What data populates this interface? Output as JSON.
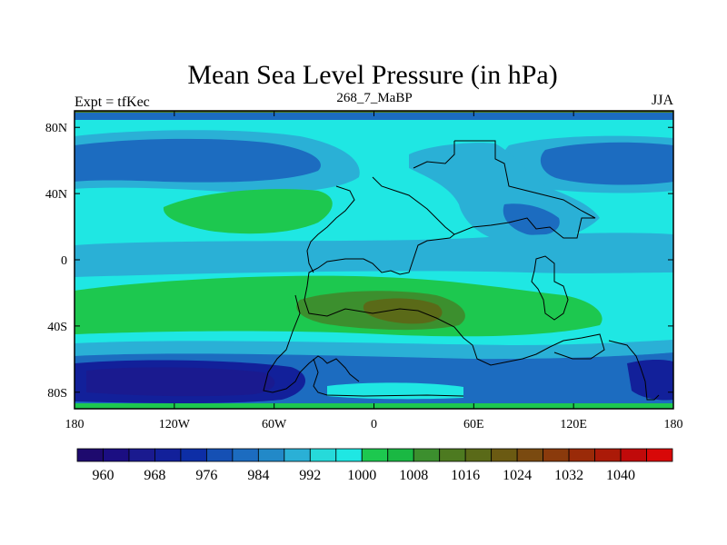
{
  "title": "Mean Sea Level Pressure (in hPa)",
  "left_label": "Expt = tfKec",
  "center_label": "268_7_MaBP",
  "right_label": "JJA",
  "lat_ticks": [
    {
      "label": "80N",
      "lat": 80
    },
    {
      "label": "40N",
      "lat": 40
    },
    {
      "label": "0",
      "lat": 0
    },
    {
      "label": "40S",
      "lat": -40
    },
    {
      "label": "80S",
      "lat": -80
    }
  ],
  "lon_ticks": [
    {
      "label": "180",
      "lon": -180
    },
    {
      "label": "120W",
      "lon": -120
    },
    {
      "label": "60W",
      "lon": -60
    },
    {
      "label": "0",
      "lon": 0
    },
    {
      "label": "60E",
      "lon": 60
    },
    {
      "label": "120E",
      "lon": 120
    },
    {
      "label": "180",
      "lon": 180
    }
  ],
  "colorbar": {
    "colors": [
      "#1e0a6e",
      "#1b0e82",
      "#1a1a8f",
      "#12209a",
      "#0d2ea6",
      "#1550b4",
      "#1c6cc0",
      "#2289c8",
      "#2ab0d6",
      "#26dada",
      "#1fe7e3",
      "#1dc84f",
      "#1ab843",
      "#3c8f2e",
      "#4d7a20",
      "#5a6a18",
      "#6b5a12",
      "#7a4a10",
      "#8a3a0c",
      "#9a2a08",
      "#ab1a08",
      "#c00a0a",
      "#d80808"
    ],
    "labels": [
      "960",
      "968",
      "976",
      "984",
      "992",
      "1000",
      "1008",
      "1016",
      "1024",
      "1032",
      "1040"
    ]
  }
}
